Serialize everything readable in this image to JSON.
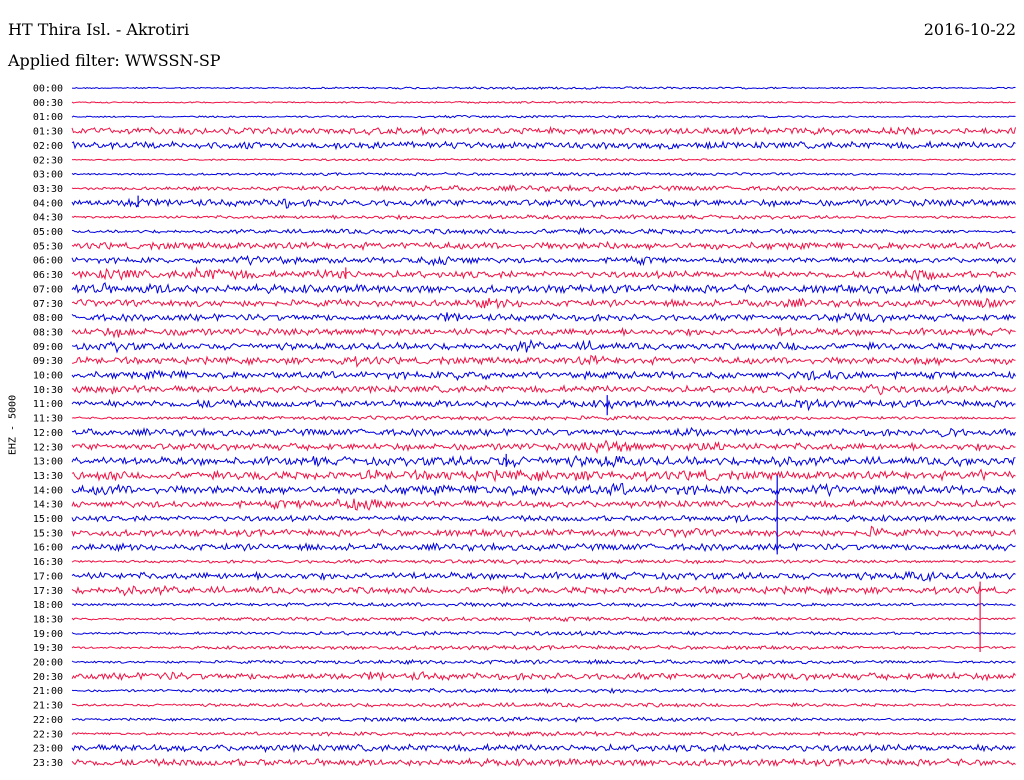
{
  "header": {
    "station": "HT Thira Isl. - Akrotiri",
    "date": "2016-10-22",
    "filter_label": "Applied filter: WWSSN-SP",
    "channel_label": "EHZ - 5000"
  },
  "colors": {
    "trace_even": "#0000dd",
    "trace_odd": "#ee1144",
    "background": "#ffffff"
  },
  "chart_data": {
    "type": "line",
    "title": "HT Thira Isl. - Akrotiri",
    "subtitle": "Applied filter: WWSSN-SP",
    "ylabel": "EHZ - 5000",
    "rows": [
      {
        "label": "00:00",
        "activity": [
          [
            0.5,
            0.15,
            0.3,
            0.05
          ]
        ]
      },
      {
        "label": "00:30",
        "activity": [
          [
            0.5,
            0.1,
            0.3,
            0.05
          ]
        ]
      },
      {
        "label": "01:00",
        "activity": [
          [
            0.5,
            0.15,
            0.4,
            0.05
          ]
        ]
      },
      {
        "label": "01:30",
        "activity": [
          [
            0.4,
            0.4,
            0.02,
            0.5
          ]
        ]
      },
      {
        "label": "02:00",
        "activity": [
          [
            0.88,
            0.4,
            0.02,
            0.5
          ]
        ]
      },
      {
        "label": "02:30",
        "activity": [
          [
            0.5,
            0.15,
            0.4,
            0.05
          ]
        ]
      },
      {
        "label": "03:00",
        "activity": [
          [
            0.5,
            0.2,
            0.5,
            0.05
          ]
        ]
      },
      {
        "label": "03:30",
        "activity": [
          [
            0.5,
            0.4,
            0.5,
            0.05
          ]
        ]
      },
      {
        "label": "04:00",
        "activity": [
          [
            0.07,
            1.0,
            0.02,
            0.25
          ],
          [
            0.22,
            1.0,
            0.02,
            0.3
          ],
          [
            0.11,
            0.6,
            0.05,
            0.5
          ]
        ]
      },
      {
        "label": "04:30",
        "activity": [
          [
            0.5,
            0.3,
            0.5,
            0.05
          ]
        ]
      },
      {
        "label": "05:00",
        "activity": [
          [
            0.5,
            0.4,
            0.5,
            0.05
          ]
        ]
      },
      {
        "label": "05:30",
        "activity": [
          [
            0.57,
            0.8,
            0.02,
            0.2
          ],
          [
            0.05,
            0.5,
            0.03,
            0.5
          ]
        ]
      },
      {
        "label": "06:00",
        "activity": [
          [
            0.2,
            0.8,
            0.05,
            0.3
          ],
          [
            0.4,
            0.8,
            0.05,
            0.3
          ],
          [
            0.6,
            0.6,
            0.05,
            0.4
          ]
        ]
      },
      {
        "label": "06:30",
        "activity": [
          [
            0.05,
            1.0,
            0.04,
            0.5
          ],
          [
            0.15,
            1.0,
            0.06,
            0.5
          ],
          [
            0.28,
            1.0,
            0.03,
            0.4
          ],
          [
            0.9,
            1.0,
            0.03,
            0.4
          ]
        ]
      },
      {
        "label": "07:00",
        "activity": [
          [
            0.02,
            1.0,
            0.04,
            0.6
          ],
          [
            0.1,
            0.9,
            0.05,
            0.5
          ],
          [
            0.58,
            0.6,
            0.05,
            0.5
          ],
          [
            0.9,
            0.7,
            0.04,
            0.5
          ]
        ]
      },
      {
        "label": "07:30",
        "activity": [
          [
            0.45,
            0.8,
            0.05,
            0.5
          ],
          [
            0.75,
            0.8,
            0.05,
            0.5
          ],
          [
            0.97,
            1.0,
            0.02,
            0.5
          ]
        ]
      },
      {
        "label": "08:00",
        "activity": [
          [
            0.4,
            0.9,
            0.02,
            0.5
          ],
          [
            0.83,
            0.8,
            0.05,
            0.5
          ]
        ]
      },
      {
        "label": "08:30",
        "activity": [
          [
            0.05,
            0.8,
            0.05,
            0.5
          ],
          [
            0.12,
            0.8,
            0.02,
            0.5
          ],
          [
            0.75,
            0.8,
            0.03,
            0.5
          ]
        ]
      },
      {
        "label": "09:00",
        "activity": [
          [
            0.05,
            0.8,
            0.03,
            0.5
          ],
          [
            0.48,
            0.9,
            0.03,
            0.5
          ],
          [
            0.55,
            0.9,
            0.02,
            0.5
          ],
          [
            0.77,
            0.8,
            0.04,
            0.5
          ]
        ]
      },
      {
        "label": "09:30",
        "activity": [
          [
            0.3,
            0.8,
            0.05,
            0.5
          ],
          [
            0.55,
            0.9,
            0.02,
            0.5
          ],
          [
            0.9,
            0.9,
            0.03,
            0.5
          ]
        ]
      },
      {
        "label": "10:00",
        "activity": [
          [
            0.1,
            0.8,
            0.04,
            0.5
          ],
          [
            0.42,
            0.9,
            0.03,
            0.5
          ],
          [
            0.8,
            0.9,
            0.06,
            0.5
          ]
        ]
      },
      {
        "label": "10:30",
        "activity": [
          [
            0.05,
            0.8,
            0.05,
            0.5
          ],
          [
            0.85,
            0.9,
            0.04,
            0.5
          ]
        ]
      },
      {
        "label": "11:00",
        "activity": [
          [
            0.15,
            0.8,
            0.03,
            0.5
          ],
          [
            0.57,
            1.0,
            0.01,
            0.5
          ],
          [
            0.78,
            0.9,
            0.04,
            0.5
          ],
          [
            0.9,
            0.7,
            0.01,
            0.5
          ]
        ]
      },
      {
        "label": "11:30",
        "activity": [
          [
            0.5,
            0.3,
            0.5,
            0.05
          ]
        ]
      },
      {
        "label": "12:00",
        "activity": [
          [
            0.65,
            0.9,
            0.03,
            0.5
          ],
          [
            0.93,
            1.0,
            0.02,
            0.5
          ]
        ]
      },
      {
        "label": "12:30",
        "activity": [
          [
            0.57,
            1.0,
            0.05,
            0.5
          ],
          [
            0.68,
            0.9,
            0.04,
            0.5
          ]
        ]
      },
      {
        "label": "13:00",
        "activity": [
          [
            0.25,
            1.0,
            0.02,
            0.6
          ],
          [
            0.46,
            1.0,
            0.02,
            0.6
          ],
          [
            0.57,
            1.0,
            0.04,
            0.6
          ],
          [
            0.75,
            1.0,
            0.04,
            0.6
          ],
          [
            0.94,
            1.0,
            0.02,
            0.6
          ],
          [
            0.5,
            0.8,
            0.3,
            0.6
          ]
        ]
      },
      {
        "label": "13:30",
        "activity": [
          [
            0.04,
            1.0,
            0.02,
            0.6
          ],
          [
            0.2,
            1.0,
            0.02,
            0.6
          ],
          [
            0.32,
            0.9,
            0.02,
            0.6
          ],
          [
            0.67,
            1.0,
            0.03,
            0.6
          ],
          [
            0.96,
            1.0,
            0.02,
            0.6
          ],
          [
            0.5,
            0.8,
            0.4,
            0.6
          ]
        ]
      },
      {
        "label": "14:00",
        "activity": [
          [
            0.04,
            1.0,
            0.03,
            0.6
          ],
          [
            0.2,
            1.0,
            0.02,
            0.6
          ],
          [
            0.58,
            1.0,
            0.03,
            0.6
          ],
          [
            0.8,
            1.0,
            0.04,
            0.6
          ],
          [
            0.5,
            0.8,
            0.4,
            0.6
          ]
        ]
      },
      {
        "label": "14:30",
        "activity": [
          [
            0.3,
            1.0,
            0.06,
            0.5
          ],
          [
            0.25,
            0.7,
            0.1,
            0.5
          ]
        ]
      },
      {
        "label": "15:00",
        "activity": [
          [
            0.71,
            0.7,
            0.02,
            0.4
          ]
        ]
      },
      {
        "label": "15:30",
        "activity": [
          [
            0.65,
            0.8,
            0.03,
            0.5
          ],
          [
            0.85,
            1.0,
            0.02,
            0.5
          ]
        ]
      },
      {
        "label": "16:00",
        "activity": [
          [
            0.99,
            0.9,
            0.01,
            0.5
          ]
        ]
      },
      {
        "label": "16:30",
        "activity": [
          [
            0.5,
            0.3,
            0.5,
            0.05
          ]
        ]
      },
      {
        "label": "17:00",
        "activity": [
          [
            0.9,
            0.9,
            0.03,
            0.5
          ],
          [
            0.82,
            0.6,
            0.05,
            0.5
          ]
        ]
      },
      {
        "label": "17:30",
        "activity": [
          [
            0.06,
            1.0,
            0.02,
            0.5
          ],
          [
            0.1,
            0.6,
            0.04,
            0.5
          ]
        ]
      },
      {
        "label": "18:00",
        "activity": [
          [
            0.5,
            0.3,
            0.5,
            0.05
          ]
        ]
      },
      {
        "label": "18:30",
        "activity": [
          [
            0.5,
            0.3,
            0.5,
            0.05
          ]
        ]
      },
      {
        "label": "19:00",
        "activity": [
          [
            0.5,
            0.3,
            0.5,
            0.05
          ]
        ]
      },
      {
        "label": "19:30",
        "activity": [
          [
            0.5,
            0.3,
            0.5,
            0.05
          ]
        ]
      },
      {
        "label": "20:00",
        "activity": [
          [
            0.5,
            0.3,
            0.5,
            0.05
          ]
        ]
      },
      {
        "label": "20:30",
        "activity": [
          [
            0.1,
            0.7,
            0.03,
            0.5
          ],
          [
            0.32,
            0.8,
            0.02,
            0.5
          ],
          [
            0.37,
            0.7,
            0.02,
            0.5
          ],
          [
            0.93,
            0.6,
            0.05,
            0.5
          ]
        ]
      },
      {
        "label": "21:00",
        "activity": [
          [
            0.5,
            0.3,
            0.5,
            0.05
          ]
        ]
      },
      {
        "label": "21:30",
        "activity": [
          [
            0.5,
            0.3,
            0.5,
            0.05
          ]
        ]
      },
      {
        "label": "22:00",
        "activity": [
          [
            0.5,
            0.3,
            0.5,
            0.05
          ]
        ]
      },
      {
        "label": "22:30",
        "activity": [
          [
            0.5,
            0.3,
            0.5,
            0.05
          ]
        ]
      },
      {
        "label": "23:00",
        "activity": [
          [
            0.67,
            0.7,
            0.01,
            0.5
          ]
        ]
      },
      {
        "label": "23:30",
        "activity": [
          [
            0.18,
            0.6,
            0.01,
            0.5
          ]
        ]
      }
    ],
    "spikes": [
      {
        "row": "11:00",
        "x_frac": 0.567,
        "up": 0.6,
        "down": 0.8
      },
      {
        "row": "14:00",
        "x_frac": 0.747,
        "up": 1.0,
        "down": 4.5
      },
      {
        "row": "17:30",
        "x_frac": 0.962,
        "up": 0.6,
        "down": 4.3
      },
      {
        "row": "04:00",
        "x_frac": 0.07,
        "up": 0.5,
        "down": 0.3
      },
      {
        "row": "13:00",
        "x_frac": 0.46,
        "up": 0.5,
        "down": 0.4
      },
      {
        "row": "06:30",
        "x_frac": 0.29,
        "up": 0.5,
        "down": 0.3
      }
    ]
  }
}
